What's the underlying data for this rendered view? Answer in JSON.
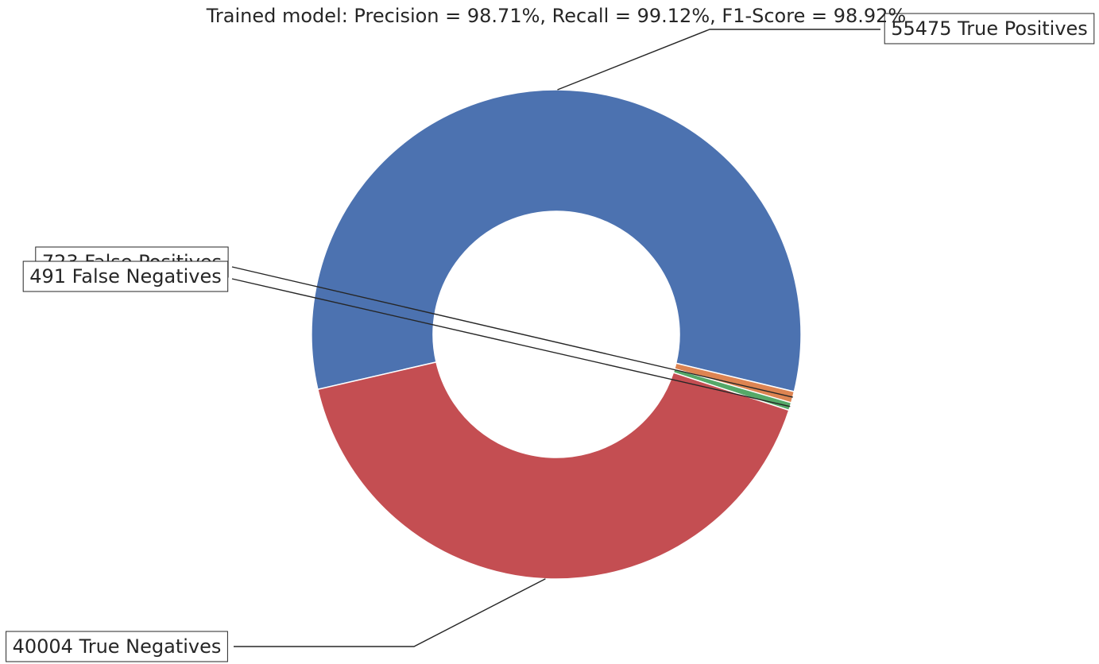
{
  "chart_data": {
    "type": "pie",
    "variant": "donut",
    "title": "Trained model: Precision = 98.71%, Recall = 99.12%, F1-Score = 98.92%",
    "slices": [
      {
        "label": "55475 True Positives",
        "value": 55475,
        "color": "#4c72b0"
      },
      {
        "label": "723 False Positives",
        "value": 723,
        "color": "#dd8452"
      },
      {
        "label": "491 False Negatives",
        "value": 491,
        "color": "#55a868"
      },
      {
        "label": "40004 True Negatives",
        "value": 40004,
        "color": "#c44e52"
      }
    ],
    "start_angle_deg": 193,
    "direction": "clockwise"
  }
}
